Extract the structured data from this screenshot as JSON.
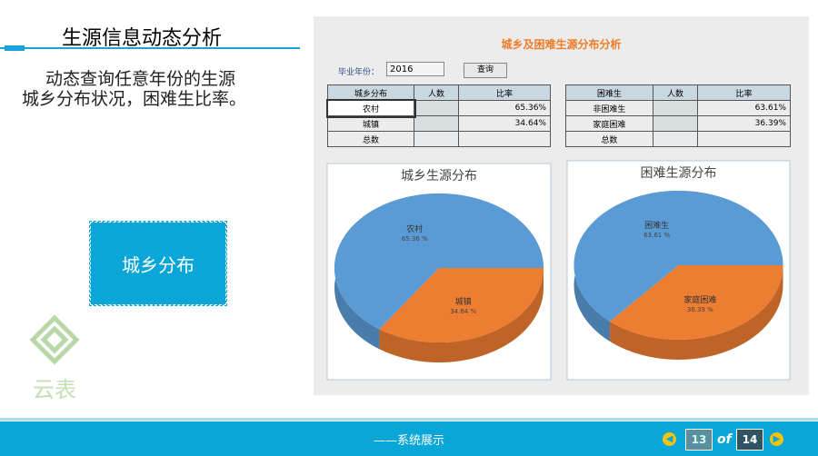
{
  "slide": {
    "title": "生源信息动态分析",
    "description_lines": [
      "动态查询任意年份的生源",
      "城乡分布状况，困难生比率。"
    ],
    "button": "城乡分布",
    "logo": "云表",
    "footer": "——系统展示",
    "pager": {
      "current": 13,
      "of": "of",
      "total": 14
    }
  },
  "app": {
    "title": "城乡及困难生源分布分析",
    "year_label": "毕业年份：",
    "year_value": "2016",
    "query_button": "查询",
    "tables": [
      {
        "headers": [
          "城乡分布",
          "人数",
          "比率"
        ],
        "rows": [
          {
            "label": "农村",
            "ratio": "65.36%"
          },
          {
            "label": "城镇",
            "ratio": "34.64%"
          },
          {
            "label": "总数"
          }
        ]
      },
      {
        "headers": [
          "困难生",
          "人数",
          "比率"
        ],
        "rows": [
          {
            "label": "非困难生",
            "ratio": "63.61%"
          },
          {
            "label": "家庭困难",
            "ratio": "36.39%"
          },
          {
            "label": "总数"
          }
        ]
      }
    ]
  },
  "chart_data": [
    {
      "type": "pie",
      "title": "城乡生源分布",
      "categories": [
        "农村",
        "城镇"
      ],
      "values": [
        65.36,
        34.64
      ],
      "value_labels": [
        "65.36 %",
        "34.64 %"
      ],
      "colors": [
        "#5b9bd5",
        "#ed7d31"
      ]
    },
    {
      "type": "pie",
      "title": "困难生源分布",
      "categories": [
        "困难生",
        "家庭困难"
      ],
      "values": [
        63.61,
        36.39
      ],
      "value_labels": [
        "63.61 %",
        "36.39 %"
      ],
      "colors": [
        "#5b9bd5",
        "#ed7d31"
      ]
    }
  ]
}
